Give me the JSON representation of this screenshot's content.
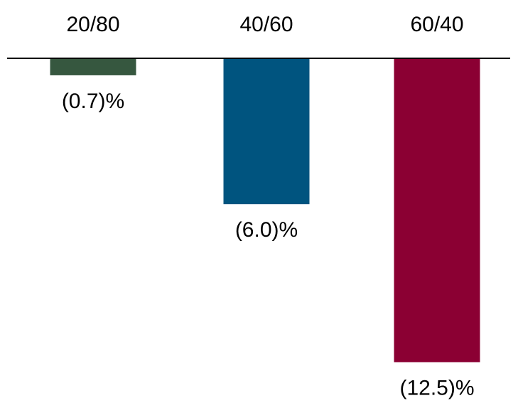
{
  "chart_data": {
    "type": "bar",
    "categories": [
      "20/80",
      "40/60",
      "60/40"
    ],
    "values": [
      -0.7,
      -6.0,
      -12.5
    ],
    "data_labels": [
      "(0.7)%",
      "(6.0)%",
      "(12.5)%"
    ],
    "colors": [
      "#36573f",
      "#00547f",
      "#8b0033"
    ],
    "axis_color": "#000000",
    "ylim": [
      -13.1,
      0
    ],
    "grid": false,
    "legend": "none"
  }
}
